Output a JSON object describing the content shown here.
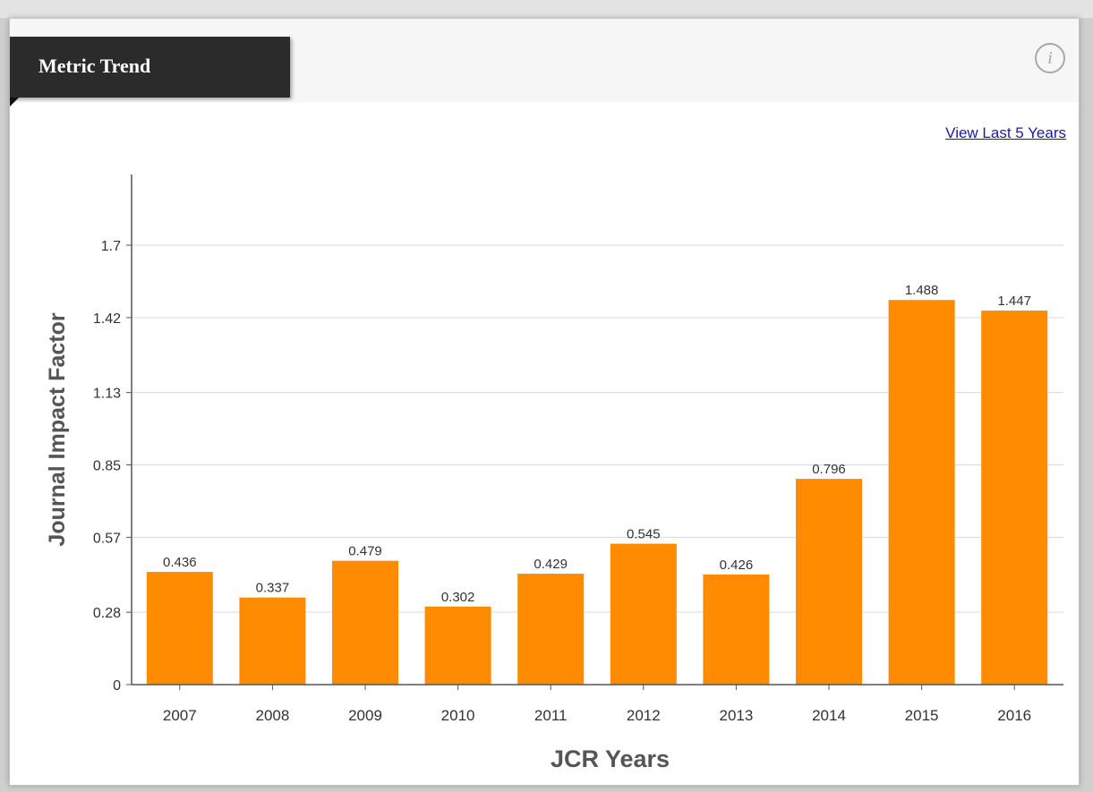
{
  "panel": {
    "title": "Metric Trend",
    "info_icon": "info-icon",
    "view_link": "View Last 5 Years"
  },
  "colors": {
    "bar": "#FF8C00",
    "grid": "#d9d9d9",
    "axis": "#555555"
  },
  "chart_data": {
    "type": "bar",
    "categories": [
      "2007",
      "2008",
      "2009",
      "2010",
      "2011",
      "2012",
      "2013",
      "2014",
      "2015",
      "2016"
    ],
    "values": [
      0.436,
      0.337,
      0.479,
      0.302,
      0.429,
      0.545,
      0.426,
      0.796,
      1.488,
      1.447
    ],
    "data_labels": [
      "0.436",
      "0.337",
      "0.479",
      "0.302",
      "0.429",
      "0.545",
      "0.426",
      "0.796",
      "1.488",
      "1.447"
    ],
    "xlabel": "JCR Years",
    "ylabel": "Journal Impact Factor",
    "yticks": [
      0,
      0.28,
      0.57,
      0.85,
      1.13,
      1.42,
      1.7
    ],
    "ytick_labels": [
      "0",
      "0.28",
      "0.57",
      "0.85",
      "1.13",
      "1.42",
      "1.7"
    ],
    "ylim": [
      0,
      1.7
    ],
    "grid": true,
    "legend": false
  }
}
